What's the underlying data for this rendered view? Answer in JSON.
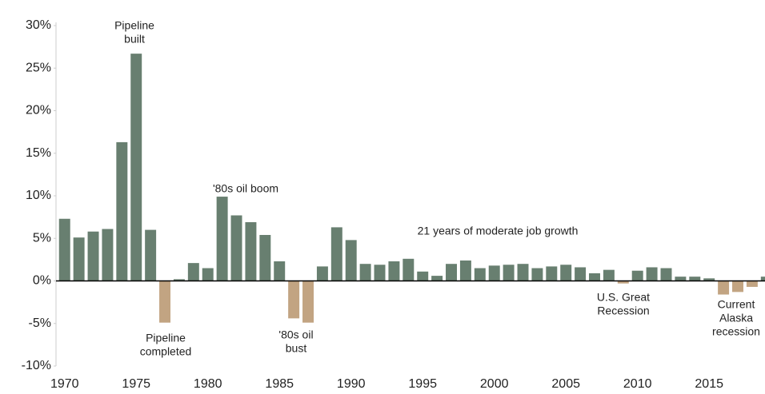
{
  "chart_data": {
    "type": "bar",
    "x": [
      1970,
      1971,
      1972,
      1973,
      1974,
      1975,
      1976,
      1977,
      1978,
      1979,
      1980,
      1981,
      1982,
      1983,
      1984,
      1985,
      1986,
      1987,
      1988,
      1989,
      1990,
      1991,
      1992,
      1993,
      1994,
      1995,
      1996,
      1997,
      1998,
      1999,
      2000,
      2001,
      2002,
      2003,
      2004,
      2005,
      2006,
      2007,
      2008,
      2009,
      2010,
      2011,
      2012,
      2013,
      2014,
      2015,
      2016,
      2017,
      2018,
      2019
    ],
    "values": [
      7.3,
      5.1,
      5.8,
      6.1,
      16.3,
      26.7,
      6.0,
      -4.9,
      0.2,
      2.1,
      1.5,
      9.9,
      7.7,
      6.9,
      5.4,
      2.3,
      -4.4,
      -4.9,
      1.7,
      6.3,
      4.8,
      2.0,
      1.9,
      2.3,
      2.6,
      1.1,
      0.6,
      2.0,
      2.4,
      1.5,
      1.8,
      1.9,
      2.0,
      1.5,
      1.7,
      1.9,
      1.6,
      0.9,
      1.3,
      -0.3,
      1.2,
      1.6,
      1.5,
      0.5,
      0.5,
      0.3,
      -1.6,
      -1.3,
      -0.7,
      0.5
    ],
    "positive_color": "#687f70",
    "negative_color": "#c2a482",
    "xlim": [
      1969.4,
      2018.9
    ],
    "xticks": [
      1970,
      1975,
      1980,
      1985,
      1990,
      1995,
      2000,
      2005,
      2010,
      2015
    ],
    "ylim": [
      -10,
      30
    ],
    "yticks": [
      {
        "value": -10,
        "label": "-10%"
      },
      {
        "value": -5,
        "label": "-5%"
      },
      {
        "value": 0,
        "label": "0%"
      },
      {
        "value": 5,
        "label": "5%"
      },
      {
        "value": 10,
        "label": "10%"
      },
      {
        "value": 15,
        "label": "15%"
      },
      {
        "value": 20,
        "label": "20%"
      },
      {
        "value": 25,
        "label": "25%"
      },
      {
        "value": 30,
        "label": "30%"
      }
    ],
    "annotations": [
      {
        "lines": [
          "Pipeline",
          "built"
        ]
      },
      {
        "lines": [
          "Pipeline",
          "completed"
        ]
      },
      {
        "lines": [
          "'80s oil boom"
        ]
      },
      {
        "lines": [
          "'80s oil",
          "bust"
        ]
      },
      {
        "lines": [
          "21 years of moderate job growth"
        ]
      },
      {
        "lines": [
          "U.S. Great",
          "Recession"
        ]
      },
      {
        "lines": [
          "Current",
          "Alaska",
          "recession"
        ]
      }
    ]
  }
}
